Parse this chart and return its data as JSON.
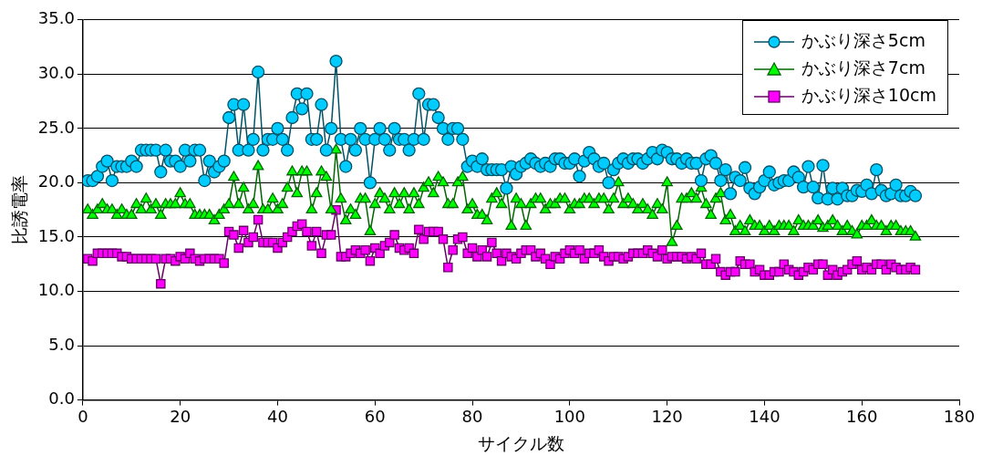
{
  "chart_data": {
    "type": "line",
    "xlabel": "サイクル数",
    "ylabel": "比誘電率",
    "x": [
      1,
      2,
      3,
      4,
      5,
      6,
      7,
      8,
      9,
      10,
      11,
      12,
      13,
      14,
      15,
      16,
      17,
      18,
      19,
      20,
      21,
      22,
      23,
      24,
      25,
      26,
      27,
      28,
      29,
      30,
      31,
      32,
      33,
      34,
      35,
      36,
      37,
      38,
      39,
      40,
      41,
      42,
      43,
      44,
      45,
      46,
      47,
      48,
      49,
      50,
      51,
      52,
      53,
      54,
      55,
      56,
      57,
      58,
      59,
      60,
      61,
      62,
      63,
      64,
      65,
      66,
      67,
      68,
      69,
      70,
      71,
      72,
      73,
      74,
      75,
      76,
      77,
      78,
      79,
      80,
      81,
      82,
      83,
      84,
      85,
      86,
      87,
      88,
      89,
      90,
      91,
      92,
      93,
      94,
      95,
      96,
      97,
      98,
      99,
      100,
      101,
      102,
      103,
      104,
      105,
      106,
      107,
      108,
      109,
      110,
      111,
      112,
      113,
      114,
      115,
      116,
      117,
      118,
      119,
      120,
      121,
      122,
      123,
      124,
      125,
      126,
      127,
      128,
      129,
      130,
      131,
      132,
      133,
      134,
      135,
      136,
      137,
      138,
      139,
      140,
      141,
      142,
      143,
      144,
      145,
      146,
      147,
      148,
      149,
      150,
      151,
      152,
      153,
      154,
      155,
      156,
      157,
      158,
      159,
      160,
      161,
      162,
      163,
      164,
      165,
      166,
      167,
      168,
      169,
      170,
      171
    ],
    "series": [
      {
        "name": "かぶり深さ5cm",
        "color": "#00ccff",
        "marker": "circle",
        "values": [
          20.2,
          20.2,
          20.6,
          21.5,
          22.0,
          20.2,
          21.5,
          21.5,
          21.5,
          22.0,
          21.5,
          23.0,
          23.0,
          23.0,
          23.0,
          21.0,
          23.0,
          22.0,
          22.0,
          21.5,
          23.0,
          22.0,
          23.0,
          23.0,
          20.2,
          22.0,
          21.0,
          21.5,
          22.0,
          26.0,
          27.2,
          23.0,
          27.2,
          23.0,
          24.0,
          30.2,
          23.0,
          24.0,
          24.0,
          25.0,
          24.0,
          23.0,
          26.0,
          28.2,
          26.8,
          28.2,
          24.0,
          24.0,
          27.2,
          23.0,
          25.0,
          31.2,
          24.0,
          21.5,
          24.0,
          23.0,
          25.0,
          24.0,
          20.0,
          24.0,
          25.0,
          24.0,
          23.0,
          25.0,
          24.0,
          24.0,
          23.0,
          24.0,
          28.2,
          24.0,
          27.2,
          27.2,
          26.0,
          25.0,
          24.0,
          25.0,
          25.0,
          24.0,
          21.5,
          22.0,
          21.5,
          22.2,
          21.2,
          21.2,
          21.2,
          21.2,
          19.5,
          21.5,
          20.8,
          21.5,
          21.8,
          22.2,
          21.8,
          21.5,
          21.8,
          21.5,
          22.2,
          22.2,
          21.8,
          21.8,
          22.2,
          20.6,
          22.0,
          22.8,
          22.2,
          21.5,
          21.8,
          20.0,
          21.2,
          21.8,
          22.2,
          21.8,
          22.2,
          22.2,
          21.8,
          22.2,
          22.8,
          22.2,
          23.0,
          22.8,
          22.2,
          22.2,
          21.8,
          22.2,
          21.8,
          21.8,
          20.2,
          22.2,
          22.5,
          21.8,
          20.2,
          21.2,
          19.0,
          20.5,
          20.2,
          21.4,
          19.5,
          19.0,
          19.6,
          20.2,
          21.0,
          19.8,
          20.0,
          20.2,
          20.2,
          21.0,
          20.5,
          19.6,
          21.5,
          19.6,
          18.6,
          21.6,
          18.5,
          19.5,
          18.5,
          19.5,
          18.8,
          18.8,
          19.3,
          19.2,
          19.8,
          19.0,
          21.2,
          19.3,
          18.8,
          19.0,
          19.8,
          18.8,
          18.8,
          19.2,
          18.8
        ]
      },
      {
        "name": "かぶり深さ7cm",
        "color": "#00ff00",
        "marker": "triangle",
        "values": [
          17.5,
          17.0,
          17.5,
          18.0,
          17.5,
          17.5,
          17.0,
          17.5,
          17.0,
          17.0,
          18.0,
          17.5,
          18.5,
          17.5,
          18.0,
          17.0,
          18.0,
          18.0,
          18.0,
          19.0,
          18.0,
          18.0,
          17.0,
          17.0,
          17.0,
          17.0,
          16.5,
          17.0,
          17.5,
          18.0,
          20.5,
          18.0,
          19.5,
          17.5,
          18.0,
          21.5,
          17.5,
          17.5,
          18.5,
          17.5,
          18.0,
          19.5,
          21.0,
          19.0,
          21.0,
          21.0,
          17.5,
          19.0,
          21.0,
          20.5,
          17.5,
          23.0,
          18.5,
          16.5,
          17.5,
          17.0,
          18.5,
          18.5,
          15.5,
          18.0,
          19.0,
          18.5,
          17.5,
          19.0,
          18.0,
          19.0,
          17.5,
          19.0,
          18.0,
          19.5,
          20.0,
          19.0,
          20.5,
          20.0,
          18.0,
          18.0,
          20.0,
          20.5,
          17.5,
          18.0,
          17.0,
          17.0,
          16.5,
          18.5,
          19.0,
          18.0,
          19.5,
          16.0,
          18.5,
          18.0,
          16.0,
          18.0,
          18.5,
          18.5,
          17.5,
          18.0,
          18.0,
          18.5,
          18.5,
          17.5,
          18.0,
          18.0,
          18.5,
          18.5,
          18.0,
          18.5,
          18.5,
          17.5,
          18.5,
          20.0,
          18.0,
          18.5,
          18.0,
          17.5,
          18.0,
          17.5,
          17.0,
          18.0,
          17.5,
          20.0,
          14.5,
          16.0,
          18.5,
          18.5,
          19.0,
          18.5,
          19.5,
          18.0,
          17.0,
          18.5,
          19.0,
          16.5,
          17.0,
          15.5,
          16.0,
          15.5,
          16.5,
          16.0,
          16.0,
          15.5,
          16.0,
          15.5,
          16.0,
          16.0,
          16.0,
          15.5,
          16.5,
          16.0,
          16.0,
          16.0,
          16.5,
          15.8,
          16.0,
          16.5,
          16.0,
          15.5,
          16.0,
          15.5,
          15.2,
          16.0,
          16.0,
          16.5,
          16.0,
          16.0,
          15.5,
          16.0,
          16.0,
          15.5,
          15.5,
          15.5,
          15.0
        ]
      },
      {
        "name": "かぶり深さ10cm",
        "color": "#ff00ff",
        "marker": "square",
        "values": [
          13.0,
          12.8,
          13.5,
          13.5,
          13.5,
          13.5,
          13.5,
          13.2,
          13.2,
          13.0,
          13.0,
          13.0,
          13.0,
          13.0,
          13.0,
          10.7,
          13.0,
          13.0,
          12.8,
          13.2,
          13.0,
          13.5,
          13.0,
          12.8,
          13.0,
          13.0,
          13.0,
          13.0,
          12.6,
          15.5,
          15.2,
          14.0,
          15.6,
          14.5,
          15.0,
          16.6,
          14.5,
          14.5,
          14.5,
          14.0,
          14.5,
          15.0,
          15.5,
          16.0,
          16.2,
          15.5,
          14.2,
          15.5,
          13.5,
          15.2,
          15.2,
          17.5,
          13.2,
          13.2,
          13.5,
          13.8,
          13.5,
          13.8,
          12.8,
          14.0,
          13.5,
          14.2,
          14.5,
          15.2,
          14.0,
          13.8,
          14.0,
          13.5,
          15.7,
          14.8,
          15.5,
          15.5,
          15.5,
          14.8,
          12.2,
          13.8,
          14.8,
          15.0,
          13.5,
          14.0,
          13.2,
          13.8,
          13.2,
          14.5,
          13.5,
          12.8,
          13.5,
          13.2,
          13.0,
          13.5,
          13.8,
          13.8,
          13.2,
          13.5,
          13.0,
          12.5,
          13.2,
          13.0,
          13.5,
          13.8,
          13.5,
          13.8,
          13.0,
          13.5,
          13.5,
          13.8,
          13.2,
          12.8,
          13.2,
          13.2,
          13.0,
          13.2,
          13.5,
          13.5,
          13.5,
          13.8,
          13.5,
          13.2,
          13.8,
          13.0,
          13.2,
          13.2,
          13.2,
          13.0,
          13.2,
          13.0,
          13.5,
          12.5,
          12.5,
          13.0,
          11.8,
          11.5,
          11.8,
          11.8,
          12.8,
          12.5,
          12.5,
          11.8,
          12.0,
          11.5,
          11.5,
          11.8,
          11.8,
          12.5,
          12.0,
          11.8,
          11.5,
          11.8,
          12.2,
          12.0,
          12.5,
          12.5,
          11.5,
          12.0,
          11.5,
          11.8,
          12.0,
          12.5,
          12.8,
          12.0,
          12.2,
          12.0,
          12.5,
          12.5,
          12.0,
          12.5,
          12.2,
          12.0,
          12.0,
          12.2,
          12.0
        ]
      }
    ],
    "xlim": [
      0,
      180
    ],
    "xticks": [
      0,
      20,
      40,
      60,
      80,
      100,
      120,
      140,
      160,
      180
    ],
    "ylim": [
      0,
      35
    ],
    "yticks": [
      {
        "value": 0,
        "label": "0.0"
      },
      {
        "value": 5,
        "label": "5.0"
      },
      {
        "value": 10,
        "label": "10.0"
      },
      {
        "value": 15,
        "label": "15.0"
      },
      {
        "value": 20,
        "label": "20.0"
      },
      {
        "value": 25,
        "label": "25.0"
      },
      {
        "value": 30,
        "label": "30.0"
      },
      {
        "value": 35,
        "label": "35.0"
      }
    ],
    "grid": "y",
    "legend": "top right",
    "line_style": "solid"
  }
}
